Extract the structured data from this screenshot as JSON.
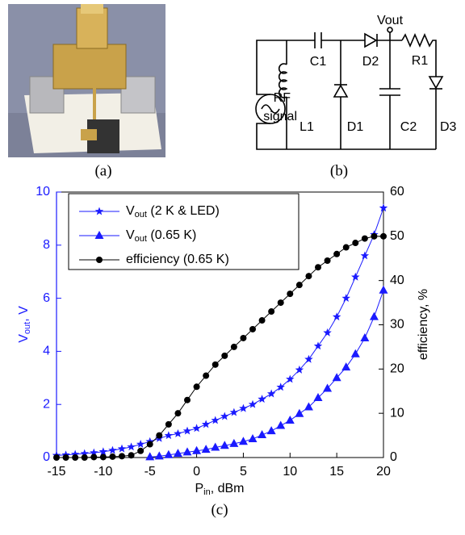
{
  "panels": {
    "a": "(a)",
    "b": "(b)",
    "c": "(c)"
  },
  "circuit": {
    "labels": [
      "Vout",
      "C1",
      "D2",
      "R1",
      "RF",
      "signal",
      "L1",
      "D1",
      "C2",
      "D3"
    ]
  },
  "chart_data": {
    "type": "line",
    "xlabel": [
      "P",
      "in",
      ", dBm"
    ],
    "ylabel": [
      "V",
      "out",
      ", V"
    ],
    "y2label": "efficiency, %",
    "x": [
      -15,
      -14,
      -13,
      -12,
      -11,
      -10,
      -9,
      -8,
      -7,
      -6,
      -5,
      -4,
      -3,
      -2,
      -1,
      0,
      1,
      2,
      3,
      4,
      5,
      6,
      7,
      8,
      9,
      10,
      11,
      12,
      13,
      14,
      15,
      16,
      17,
      18,
      19,
      20
    ],
    "xlim": [
      -15,
      20
    ],
    "xticks": [
      -15,
      -10,
      -5,
      0,
      5,
      10,
      15,
      20
    ],
    "ylim": [
      0,
      10
    ],
    "yticks": [
      0,
      2,
      4,
      6,
      8,
      10
    ],
    "y2lim": [
      0,
      60
    ],
    "y2ticks": [
      0,
      10,
      20,
      30,
      40,
      50,
      60
    ],
    "axis_color": "#1a1aff",
    "series": [
      {
        "name": [
          "V",
          "out",
          " (2 K & LED)"
        ],
        "color": "#1a1aff",
        "marker": "star",
        "values": [
          0.08,
          0.1,
          0.12,
          0.15,
          0.18,
          0.22,
          0.27,
          0.33,
          0.4,
          0.5,
          0.6,
          0.72,
          0.83,
          0.9,
          1.0,
          1.1,
          1.25,
          1.4,
          1.55,
          1.7,
          1.85,
          2.0,
          2.2,
          2.4,
          2.65,
          2.95,
          3.3,
          3.7,
          4.2,
          4.7,
          5.3,
          6.0,
          6.8,
          7.6,
          8.4,
          9.4
        ]
      },
      {
        "name": [
          "V",
          "out",
          " (0.65 K)"
        ],
        "color": "#1a1aff",
        "marker": "triangle",
        "values": [
          null,
          null,
          null,
          null,
          null,
          null,
          null,
          null,
          null,
          null,
          0.02,
          0.05,
          0.1,
          0.15,
          0.2,
          0.25,
          0.3,
          0.38,
          0.45,
          0.52,
          0.6,
          0.7,
          0.85,
          1.0,
          1.2,
          1.4,
          1.65,
          1.9,
          2.25,
          2.6,
          3.0,
          3.4,
          3.9,
          4.5,
          5.3,
          6.3
        ]
      },
      {
        "name": [
          "efficiency (0.65 K)"
        ],
        "color": "#000000",
        "marker": "circle",
        "axis": "y2",
        "values": [
          0,
          0,
          0,
          0,
          0.1,
          0.1,
          0.2,
          0.3,
          0.5,
          1.5,
          3,
          5,
          7.5,
          10,
          13,
          16,
          18.5,
          21,
          23,
          25,
          27,
          29,
          31,
          33,
          35,
          37,
          39,
          41,
          43,
          44.5,
          46,
          47.5,
          48.5,
          49.5,
          50,
          50
        ]
      }
    ]
  }
}
